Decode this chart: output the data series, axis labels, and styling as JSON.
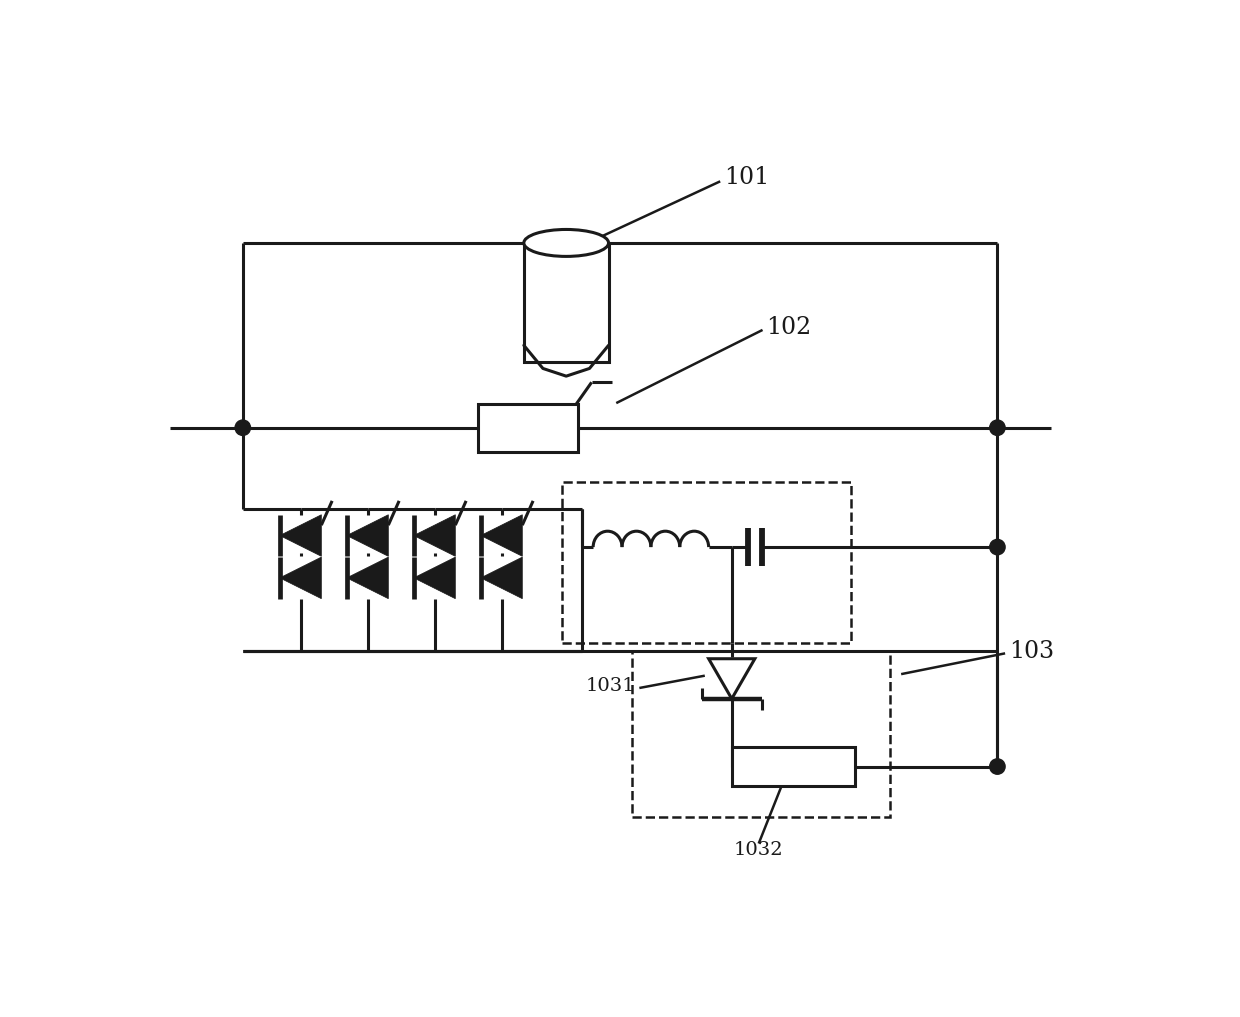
{
  "lw": 2.2,
  "dlw": 1.8,
  "lc": "#1a1a1a",
  "bg": "#ffffff",
  "fig_w": 12.4,
  "fig_h": 10.17,
  "dpi": 100,
  "label_101": "101",
  "label_102": "102",
  "label_103": "103",
  "label_1031": "1031",
  "label_1032": "1032",
  "font_large": 17,
  "font_small": 14
}
